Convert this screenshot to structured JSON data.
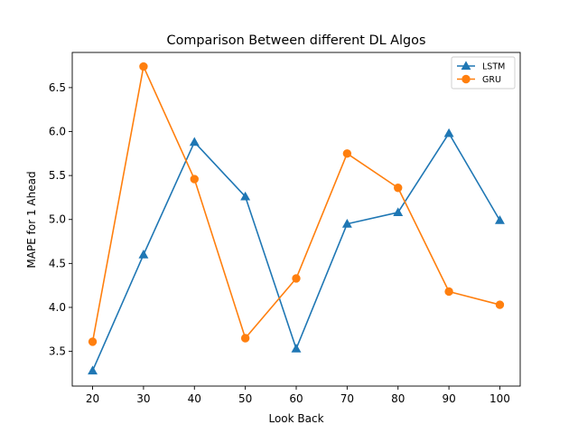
{
  "chart_data": {
    "type": "line",
    "title": "Comparison Between different DL Algos",
    "xlabel": "Look Back",
    "ylabel": "MAPE for 1 Ahead",
    "x": [
      20,
      30,
      40,
      50,
      60,
      70,
      80,
      90,
      100
    ],
    "xticks": [
      "20",
      "30",
      "40",
      "50",
      "60",
      "70",
      "80",
      "90",
      "100"
    ],
    "yticks": [
      "3.5",
      "4.0",
      "4.5",
      "5.0",
      "5.5",
      "6.0",
      "6.5"
    ],
    "xlim": [
      16,
      104
    ],
    "ylim": [
      3.105,
      6.9
    ],
    "grid": false,
    "legend_position": "top-right",
    "series": [
      {
        "name": "LSTM",
        "color": "#1f77b4",
        "marker": "triangle",
        "values": [
          3.28,
          4.6,
          5.88,
          5.26,
          3.53,
          4.95,
          5.08,
          5.98,
          4.99
        ]
      },
      {
        "name": "GRU",
        "color": "#ff7f0e",
        "marker": "circle",
        "values": [
          3.61,
          6.74,
          5.46,
          3.65,
          4.33,
          5.75,
          5.36,
          4.18,
          4.03
        ]
      }
    ]
  }
}
